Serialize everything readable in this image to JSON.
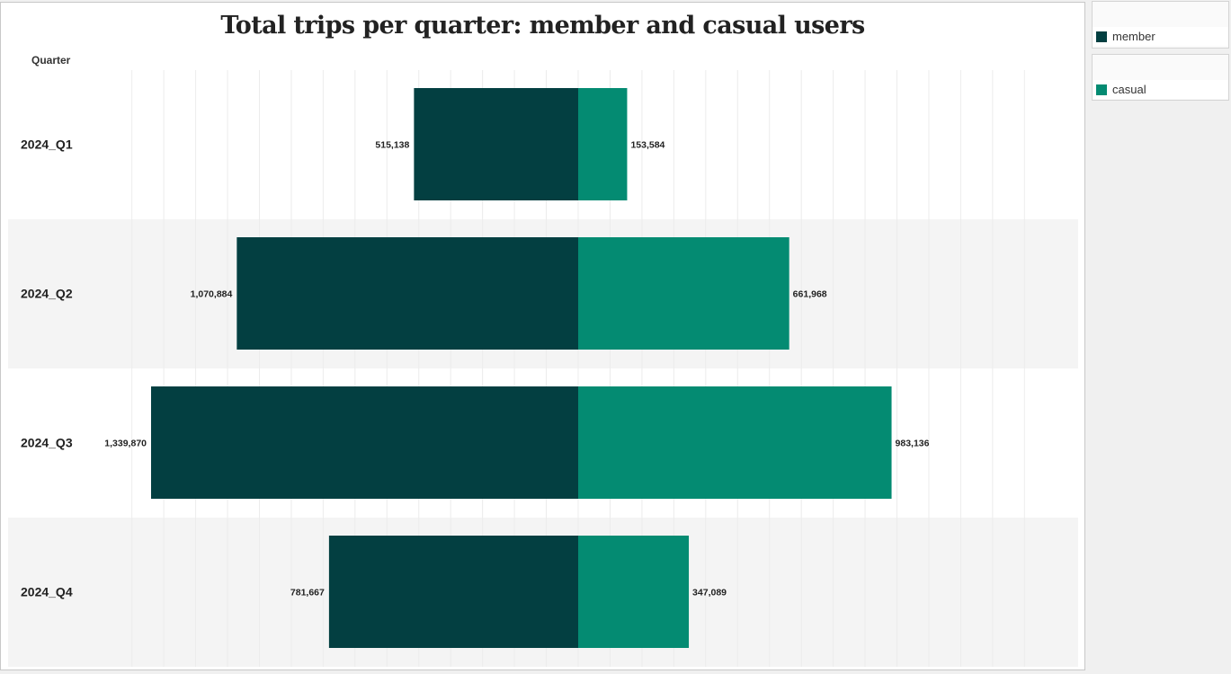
{
  "colors": {
    "member": "#033f41",
    "casual": "#048b72",
    "band": "#f4f4f4",
    "grid": "#ececec"
  },
  "chart_data": {
    "type": "bar",
    "orientation": "horizontal-diverging",
    "title": "Total trips per quarter: member and casual users",
    "row_header": "Quarter",
    "categories": [
      "2024_Q1",
      "2024_Q2",
      "2024_Q3",
      "2024_Q4"
    ],
    "series": [
      {
        "name": "member",
        "direction": "left",
        "values": [
          515138,
          1070884,
          1339870,
          781667
        ],
        "labels": [
          "515,138",
          "1,070,884",
          "1,339,870",
          "781,667"
        ]
      },
      {
        "name": "casual",
        "direction": "right",
        "values": [
          153584,
          661968,
          983136,
          347089
        ],
        "labels": [
          "153,584",
          "661,968",
          "983,136",
          "347,089"
        ]
      }
    ],
    "xlim": [
      -1400000,
      1400000
    ],
    "grid": true
  },
  "legend": [
    {
      "label": "member"
    },
    {
      "label": "casual"
    }
  ]
}
